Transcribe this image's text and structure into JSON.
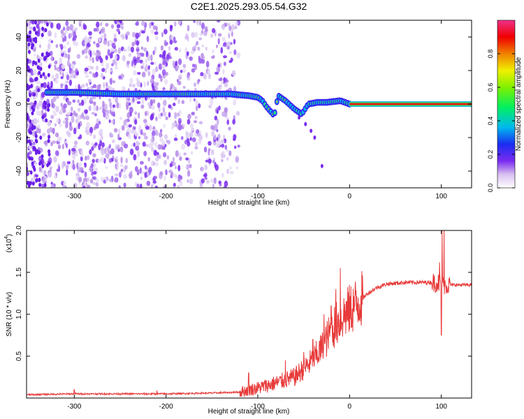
{
  "title": "C2E1.2025.293.05.54.G32",
  "chart_data": [
    {
      "type": "heatmap",
      "name": "spectrogram",
      "xlabel": "Height of straight line (km)",
      "ylabel": "Frequency (Hz)",
      "xlim": [
        -352,
        133
      ],
      "ylim": [
        -50,
        50
      ],
      "xticks": [
        -300,
        -200,
        -100,
        0,
        100
      ],
      "yticks": [
        -40,
        -20,
        0,
        20,
        40
      ],
      "frequency_track": [
        {
          "x": -330,
          "y": 7
        },
        {
          "x": -300,
          "y": 7
        },
        {
          "x": -250,
          "y": 6
        },
        {
          "x": -200,
          "y": 6
        },
        {
          "x": -160,
          "y": 6
        },
        {
          "x": -130,
          "y": 6
        },
        {
          "x": -110,
          "y": 5
        },
        {
          "x": -100,
          "y": 4
        },
        {
          "x": -95,
          "y": 2
        },
        {
          "x": -90,
          "y": -2
        },
        {
          "x": -85,
          "y": -5
        },
        {
          "x": -82,
          "y": -7
        },
        {
          "x": -78,
          "y": 5
        },
        {
          "x": -70,
          "y": 2
        },
        {
          "x": -60,
          "y": -3
        },
        {
          "x": -52,
          "y": -6
        },
        {
          "x": -45,
          "y": 0
        },
        {
          "x": -35,
          "y": 1
        },
        {
          "x": -25,
          "y": 1
        },
        {
          "x": -10,
          "y": 2
        },
        {
          "x": 0,
          "y": 0
        },
        {
          "x": 50,
          "y": 0
        },
        {
          "x": 90,
          "y": 0
        },
        {
          "x": 95,
          "y": 2
        },
        {
          "x": 100,
          "y": 0
        },
        {
          "x": 133,
          "y": 0
        }
      ],
      "colorbar": {
        "label": "Normalized spectral amplitude",
        "ticks": [
          "0.0",
          "0.2",
          "0.4",
          "0.6",
          "0.8"
        ],
        "range": [
          0,
          1
        ]
      }
    },
    {
      "type": "line",
      "name": "snr",
      "xlabel": "Height of straight line (km)",
      "ylabel": "SNR (10 * v/v)",
      "scale_label": "(x10",
      "scale_exp": "4",
      "xlim": [
        -352,
        133
      ],
      "ylim": [
        0,
        2.0
      ],
      "xticks": [
        -300,
        -200,
        -100,
        0,
        100
      ],
      "yticks": [
        "0.5",
        "1.0",
        "1.5",
        "2.0"
      ],
      "color": "#e83a3a",
      "x": [
        -352,
        -300,
        -250,
        -200,
        -150,
        -120,
        -100,
        -80,
        -60,
        -50,
        -40,
        -30,
        -20,
        -10,
        0,
        10,
        20,
        30,
        40,
        60,
        80,
        90,
        95,
        100,
        105,
        110,
        133
      ],
      "values": [
        0.04,
        0.05,
        0.05,
        0.05,
        0.06,
        0.07,
        0.12,
        0.18,
        0.25,
        0.35,
        0.45,
        0.6,
        0.8,
        0.95,
        1.05,
        1.15,
        1.25,
        1.32,
        1.36,
        1.38,
        1.38,
        1.38,
        1.38,
        1.36,
        1.35,
        1.35,
        1.35
      ],
      "spikes": [
        {
          "x": -300,
          "y": 0.1
        },
        {
          "x": -210,
          "y": 0.09
        },
        {
          "x": -110,
          "y": 0.3
        },
        {
          "x": -70,
          "y": 0.45
        },
        {
          "x": -50,
          "y": 0.55
        },
        {
          "x": -40,
          "y": 0.7
        },
        {
          "x": -28,
          "y": 1.0
        },
        {
          "x": -20,
          "y": 1.1
        },
        {
          "x": -15,
          "y": 1.3
        },
        {
          "x": -10,
          "y": 1.55
        },
        {
          "x": 98,
          "y": 1.62
        },
        {
          "x": 101,
          "y": 2.0
        },
        {
          "x": 103,
          "y": 2.0
        },
        {
          "x": 100,
          "y": 0.75
        }
      ]
    }
  ]
}
